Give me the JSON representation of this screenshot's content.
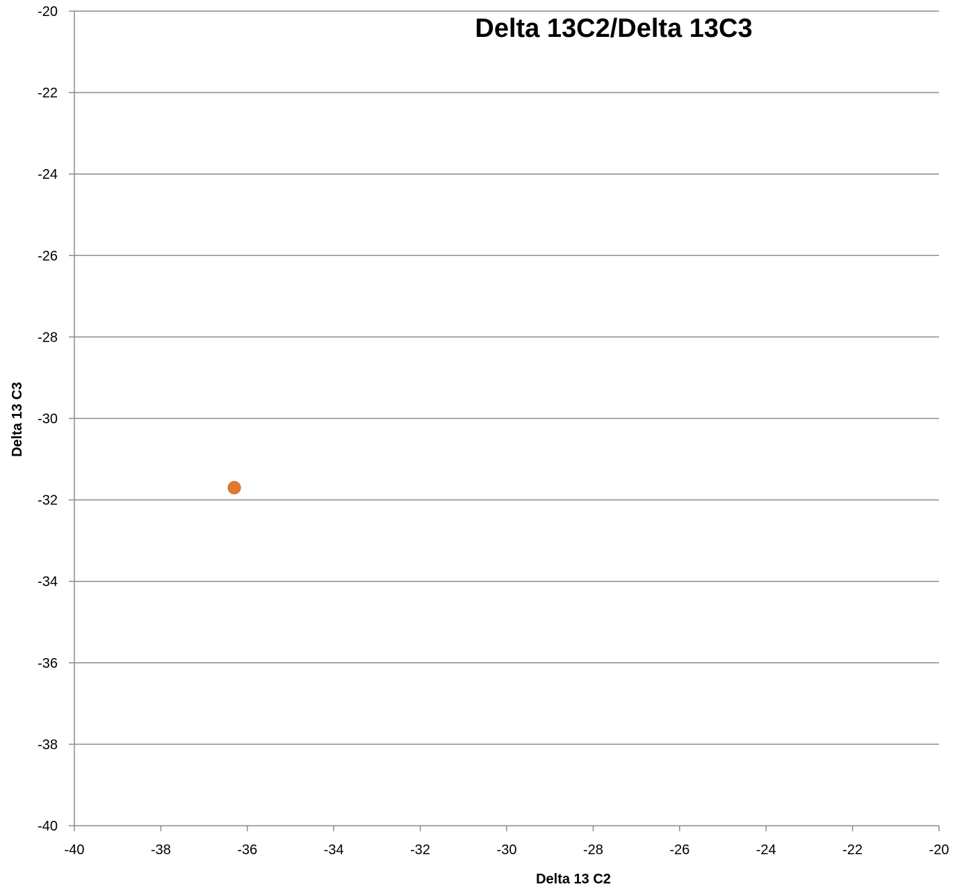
{
  "chart_data": {
    "type": "scatter",
    "title": "Delta 13C2/Delta 13C3",
    "xlabel": "Delta 13 C2",
    "ylabel": "Delta 13 C3",
    "xlim": [
      -40,
      -20
    ],
    "ylim": [
      -40,
      -20
    ],
    "x_ticks": [
      -40,
      -38,
      -36,
      -34,
      -32,
      -30,
      -28,
      -26,
      -24,
      -22,
      -20
    ],
    "y_ticks": [
      -20,
      -22,
      -24,
      -26,
      -28,
      -30,
      -32,
      -34,
      -36,
      -38,
      -40
    ],
    "grid": "horizontal",
    "legend": "none",
    "series": [
      {
        "x": [
          -36.3
        ],
        "y": [
          -31.7
        ],
        "color": "#e07b2e"
      }
    ]
  }
}
